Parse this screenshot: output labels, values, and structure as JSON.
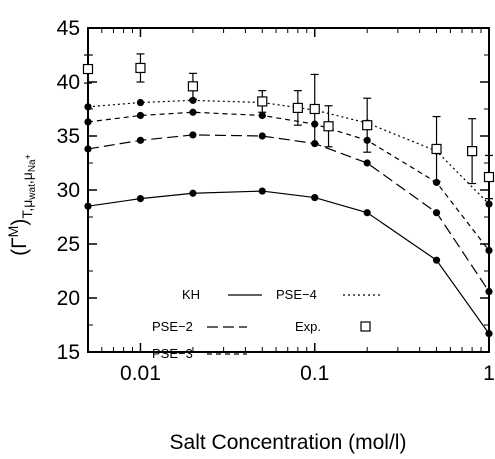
{
  "chart_data": {
    "type": "line",
    "xscale": "log",
    "xlim": [
      0.005,
      1
    ],
    "ylim": [
      15,
      45
    ],
    "xticks": [
      0.01,
      0.1,
      1
    ],
    "xtick_labels": [
      "0.01",
      "0.1",
      "1"
    ],
    "yticks": [
      15,
      20,
      25,
      30,
      35,
      40,
      45
    ],
    "ytick_labels": [
      "15",
      "20",
      "25",
      "30",
      "35",
      "40",
      "45"
    ],
    "xlabel": "Salt Concentration (mol/l)",
    "ylabel": "(Γ^M)T,μwat,μNa+",
    "ylabel_parts": {
      "open": "(Γ",
      "sup": "M",
      "close": ")",
      "sub1": "T,μ",
      "sub2": "wat",
      "sub3": ",μ",
      "sub4": "Na",
      "sub5": "+"
    },
    "grid": false,
    "legend_position": "bottom-left",
    "series": [
      {
        "name": "KH",
        "dash": "solid",
        "x": [
          0.005,
          0.01,
          0.02,
          0.05,
          0.1,
          0.2,
          0.5,
          1
        ],
        "y": [
          28.5,
          29.2,
          29.7,
          29.9,
          29.3,
          27.9,
          23.5,
          16.7
        ]
      },
      {
        "name": "PSE−2",
        "dash": "long",
        "x": [
          0.005,
          0.01,
          0.02,
          0.05,
          0.1,
          0.2,
          0.5,
          1
        ],
        "y": [
          33.8,
          34.6,
          35.1,
          35.0,
          34.3,
          32.5,
          27.9,
          20.6
        ]
      },
      {
        "name": "PSE−3",
        "dash": "short",
        "x": [
          0.005,
          0.01,
          0.02,
          0.05,
          0.1,
          0.2,
          0.5,
          1
        ],
        "y": [
          36.3,
          36.9,
          37.2,
          36.9,
          36.1,
          34.6,
          30.7,
          24.4
        ]
      },
      {
        "name": "PSE−4",
        "dash": "dotted",
        "x": [
          0.005,
          0.01,
          0.02,
          0.05,
          0.1,
          0.2,
          0.5,
          1
        ],
        "y": [
          37.7,
          38.1,
          38.3,
          38.1,
          37.4,
          36.2,
          33.6,
          28.7
        ]
      }
    ],
    "experimental": {
      "name": "Exp.",
      "x": [
        0.005,
        0.01,
        0.02,
        0.05,
        0.08,
        0.1,
        0.12,
        0.2,
        0.5,
        0.8,
        1
      ],
      "y": [
        41.2,
        41.3,
        39.6,
        38.2,
        37.6,
        37.5,
        35.9,
        36.0,
        33.8,
        33.6,
        31.2
      ],
      "err": [
        1.3,
        1.3,
        1.2,
        1.0,
        1.6,
        3.2,
        1.9,
        2.5,
        3.0,
        3.0,
        2.0
      ]
    },
    "legend_labels": {
      "kh": "KH",
      "pse2": "PSE−2",
      "pse3": "PSE−3",
      "pse4": "PSE−4",
      "exp": "Exp."
    },
    "colors": {
      "line": "#000000",
      "background": "#ffffff"
    }
  }
}
